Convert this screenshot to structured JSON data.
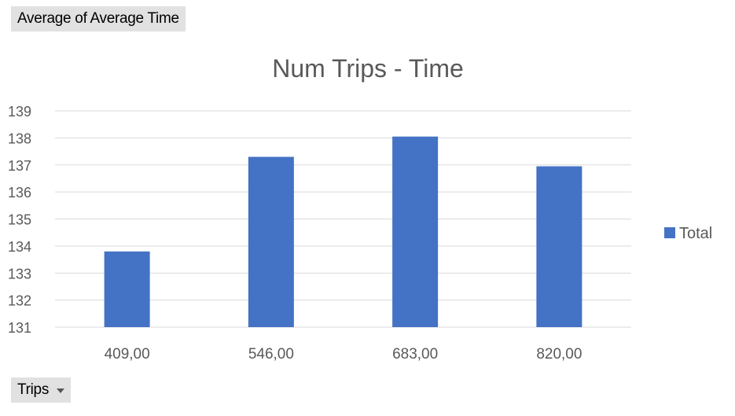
{
  "pivot": {
    "value_field_label": "Average of Average Time",
    "axis_field_label": "Trips"
  },
  "colors": {
    "bar": "#4472c4",
    "gridline": "#d9d9d9",
    "text": "#595959"
  },
  "chart_data": {
    "type": "bar",
    "title": "Num Trips - Time",
    "xlabel": "",
    "ylabel": "",
    "categories": [
      "409,00",
      "546,00",
      "683,00",
      "820,00"
    ],
    "series": [
      {
        "name": "Total",
        "values": [
          133.8,
          137.3,
          138.05,
          136.95
        ]
      }
    ],
    "ylim": [
      131,
      139
    ],
    "yticks": [
      "131",
      "132",
      "133",
      "134",
      "135",
      "136",
      "137",
      "138",
      "139"
    ],
    "grid": true,
    "legend_position": "right"
  }
}
